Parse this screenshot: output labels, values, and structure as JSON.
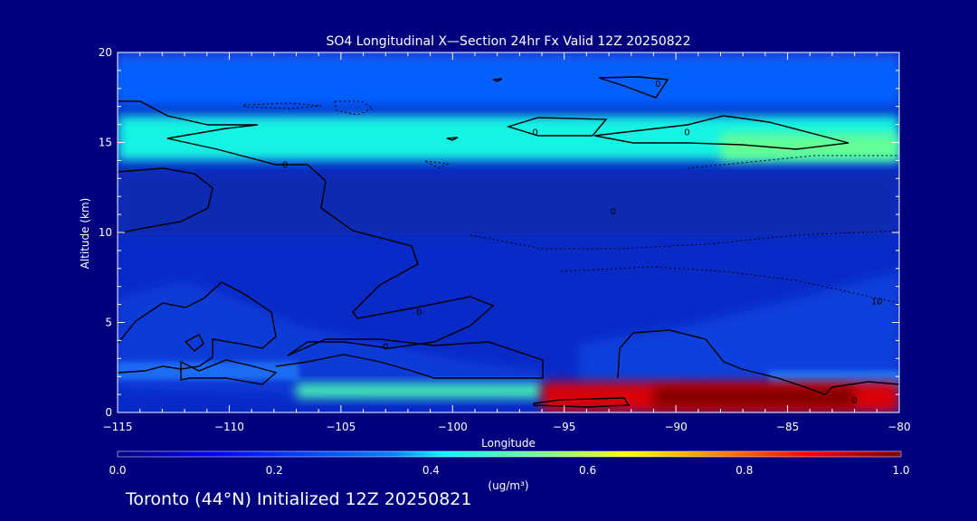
{
  "chart_data": {
    "type": "heatmap",
    "title": "SO4 Longitudinal X—Section 24hr  Fx Valid 12Z 20250822",
    "xlabel": "Longitude",
    "ylabel": "Altitude (km)",
    "xlim": [
      -115,
      -80
    ],
    "ylim": [
      0,
      20
    ],
    "x_ticks": [
      -115,
      -110,
      -105,
      -100,
      -95,
      -90,
      -85,
      -80
    ],
    "x_tick_labels": [
      "−115",
      "−110",
      "−105",
      "−100",
      "−95",
      "−90",
      "−85",
      "−80"
    ],
    "y_ticks": [
      0,
      5,
      10,
      15,
      20
    ],
    "y_tick_labels": [
      "0",
      "5",
      "10",
      "15",
      "20"
    ],
    "colorbar": {
      "min": 0.0,
      "max": 1.0,
      "ticks": [
        0.0,
        0.2,
        0.4,
        0.6,
        0.8,
        1.0
      ],
      "tick_labels": [
        "0.0",
        "0.2",
        "0.4",
        "0.6",
        "0.8",
        "1.0"
      ],
      "units": "(ug/m³)"
    },
    "color_ramp": [
      "#00007f",
      "#0000ff",
      "#007fff",
      "#00ffff",
      "#7fff7f",
      "#ffff00",
      "#ff7f00",
      "#ff0000",
      "#7f0000"
    ],
    "background_value": 0.13,
    "field_bands": [
      {
        "region": "upper layer",
        "lon": [
          -115,
          -80
        ],
        "alt": [
          14,
          16.5
        ],
        "value": 0.4
      },
      {
        "region": "upper layer east",
        "lon": [
          -88,
          -80
        ],
        "alt": [
          14,
          15.5
        ],
        "value": 0.48
      },
      {
        "region": "layer near 18 km",
        "lon": [
          -115,
          -80
        ],
        "alt": [
          17,
          19.5
        ],
        "value": 0.22
      },
      {
        "region": "western boundary plume",
        "lon": [
          -107,
          -96
        ],
        "alt": [
          0.8,
          1.6
        ],
        "value": 0.45
      },
      {
        "region": "surface max",
        "lon": [
          -96,
          -80
        ],
        "alt": [
          0,
          1.7
        ],
        "value": 0.9
      },
      {
        "region": "surface max core",
        "lon": [
          -91,
          -82
        ],
        "alt": [
          0.3,
          1.4
        ],
        "value": 1.0
      }
    ],
    "contours": [
      {
        "label": "0",
        "lon": -107.5,
        "alt": 13.8
      },
      {
        "label": "0",
        "lon": -96.3,
        "alt": 15.6
      },
      {
        "label": "0",
        "lon": -89.5,
        "alt": 15.6
      },
      {
        "label": "0",
        "lon": -90.8,
        "alt": 18.3
      },
      {
        "label": "0",
        "lon": -101.5,
        "alt": 5.6
      },
      {
        "label": "0",
        "lon": -103,
        "alt": 3.7
      },
      {
        "label": "0",
        "lon": -82,
        "alt": 0.7
      }
    ],
    "dashed_contour_labels": [
      {
        "label": "0",
        "lon": -92.8,
        "alt": 11.2
      },
      {
        "label": "10",
        "lon": -81,
        "alt": 6.2
      }
    ]
  },
  "footer": {
    "text": "Toronto (44°N) Initialized 12Z 20250821"
  }
}
